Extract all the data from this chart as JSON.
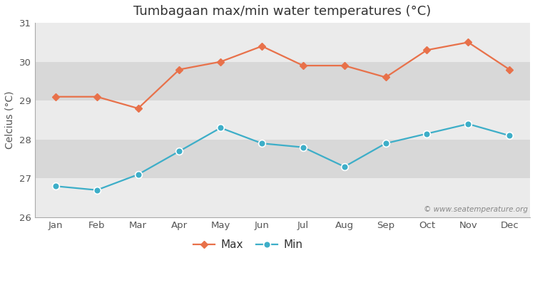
{
  "title": "Tumbagaan max/min water temperatures (°C)",
  "ylabel": "Celcius (°C)",
  "months": [
    "Jan",
    "Feb",
    "Mar",
    "Apr",
    "May",
    "Jun",
    "Jul",
    "Aug",
    "Sep",
    "Oct",
    "Nov",
    "Dec"
  ],
  "max_temps": [
    29.1,
    29.1,
    28.8,
    29.8,
    30.0,
    30.4,
    29.9,
    29.9,
    29.6,
    30.3,
    30.5,
    29.8
  ],
  "min_temps": [
    26.8,
    26.7,
    27.1,
    27.7,
    28.3,
    27.9,
    27.8,
    27.3,
    27.9,
    28.15,
    28.4,
    28.1
  ],
  "max_color": "#e8714a",
  "min_color": "#3daec8",
  "ylim": [
    26,
    31
  ],
  "yticks": [
    26,
    27,
    28,
    29,
    30,
    31
  ],
  "outer_bg_color": "#ffffff",
  "band_light": "#ebebeb",
  "band_dark": "#d8d8d8",
  "watermark": "© www.seatemperature.org",
  "title_fontsize": 13,
  "label_fontsize": 10,
  "tick_fontsize": 9.5,
  "watermark_fontsize": 7.5
}
